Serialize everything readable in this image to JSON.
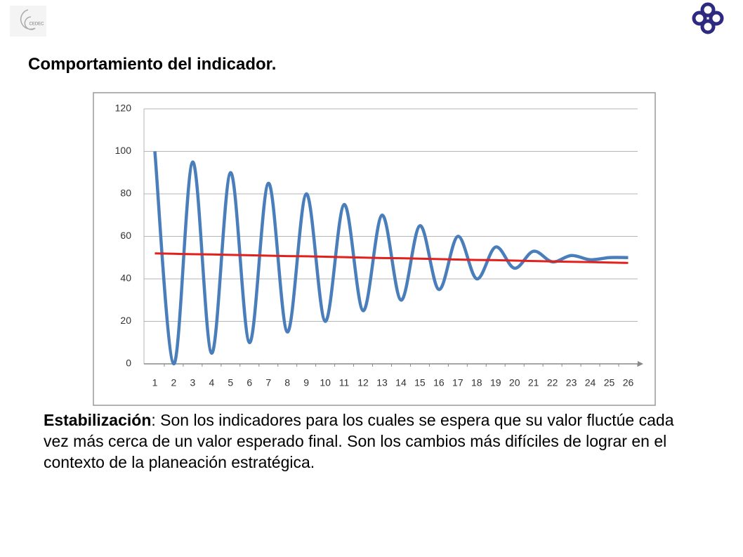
{
  "logo_text": "CEDEC",
  "heading": "Comportamiento del indicador.",
  "paragraph": {
    "term": "Estabilización",
    "text": ": Son los indicadores para los cuales se espera que su valor fluctúe cada vez más cerca de un valor esperado final. Son los cambios más difíciles de lograr en el contexto de la planeación estratégica."
  },
  "chart_data": {
    "type": "line",
    "categories": [
      1,
      2,
      3,
      4,
      5,
      6,
      7,
      8,
      9,
      10,
      11,
      12,
      13,
      14,
      15,
      16,
      17,
      18,
      19,
      20,
      21,
      22,
      23,
      24,
      25,
      26
    ],
    "series": [
      {
        "color": "#4a7ebb",
        "values": [
          100,
          0,
          95,
          5,
          90,
          10,
          85,
          15,
          80,
          20,
          75,
          25,
          70,
          30,
          65,
          35,
          60,
          40,
          55,
          45,
          53,
          48,
          51,
          49,
          50,
          50
        ]
      },
      {
        "color": "#e3201b",
        "values": [
          52.0,
          51.8,
          51.6,
          51.5,
          51.3,
          51.1,
          50.9,
          50.7,
          50.6,
          50.4,
          50.2,
          50.0,
          49.8,
          49.7,
          49.5,
          49.3,
          49.1,
          48.9,
          48.8,
          48.6,
          48.4,
          48.2,
          48.0,
          47.9,
          47.7,
          47.5
        ]
      }
    ],
    "ylim": [
      0,
      120
    ],
    "yticks": [
      0,
      20,
      40,
      60,
      80,
      100,
      120
    ],
    "grid": true
  }
}
